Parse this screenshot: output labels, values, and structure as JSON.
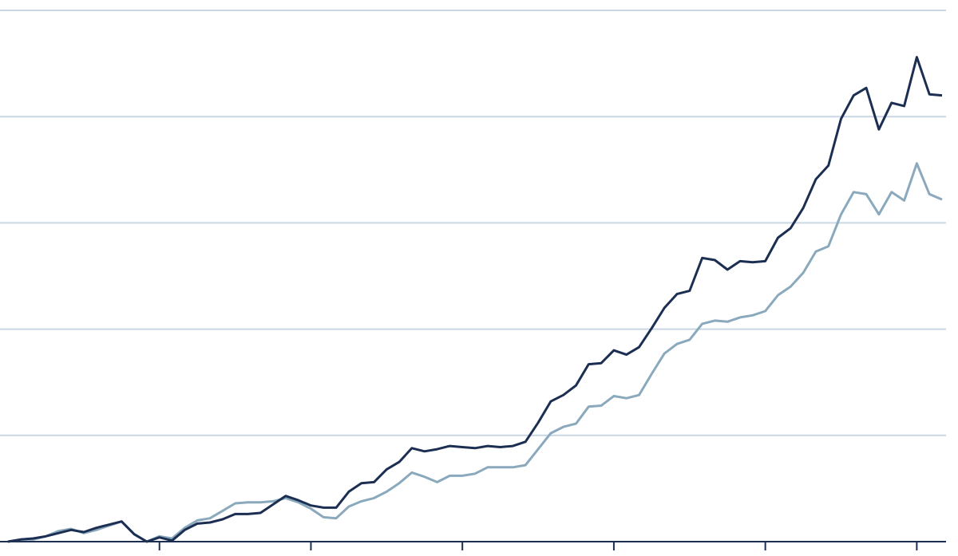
{
  "chart_data": {
    "type": "line",
    "x": [
      0,
      1,
      2,
      3,
      4,
      5,
      6,
      7,
      8,
      9,
      10,
      11,
      12,
      13,
      14,
      15,
      16,
      17,
      18,
      19,
      20,
      21,
      22,
      23,
      24,
      25,
      26,
      27,
      28,
      29,
      30,
      31,
      32,
      33,
      34,
      35,
      36,
      37,
      38,
      39,
      40,
      41,
      42,
      43,
      44,
      45,
      46,
      47,
      48,
      49,
      50,
      51,
      52,
      53,
      54,
      55,
      56,
      57,
      58,
      59,
      60,
      61,
      62,
      63,
      64,
      65,
      66,
      67,
      68,
      69,
      70,
      71,
      72,
      73,
      74
    ],
    "series": [
      {
        "color": "#1c2f52",
        "values": [
          0,
          0.02,
          0.03,
          0.05,
          0.08,
          0.11,
          0.09,
          0.13,
          0.16,
          0.19,
          0.07,
          0,
          0.04,
          0.01,
          0.11,
          0.17,
          0.18,
          0.21,
          0.26,
          0.26,
          0.27,
          0.35,
          0.43,
          0.39,
          0.34,
          0.32,
          0.32,
          0.47,
          0.55,
          0.56,
          0.68,
          0.75,
          0.88,
          0.85,
          0.87,
          0.9,
          0.89,
          0.88,
          0.9,
          0.89,
          0.9,
          0.94,
          1.12,
          1.32,
          1.38,
          1.47,
          1.67,
          1.68,
          1.8,
          1.76,
          1.83,
          2.01,
          2.2,
          2.33,
          2.36,
          2.67,
          2.65,
          2.56,
          2.64,
          2.63,
          2.64,
          2.86,
          2.95,
          3.14,
          3.41,
          3.54,
          3.98,
          4.2,
          4.27,
          3.88,
          4.13,
          4.1,
          4.56,
          4.21,
          4.2
        ]
      },
      {
        "color": "#8ba9bd",
        "values": [
          0,
          0.02,
          0.02,
          0.05,
          0.1,
          0.12,
          0.08,
          0.11,
          0.15,
          0.19,
          0.07,
          0,
          0.05,
          0.03,
          0.13,
          0.2,
          0.22,
          0.29,
          0.36,
          0.37,
          0.37,
          0.38,
          0.41,
          0.37,
          0.31,
          0.23,
          0.22,
          0.33,
          0.38,
          0.41,
          0.47,
          0.55,
          0.65,
          0.61,
          0.56,
          0.62,
          0.62,
          0.64,
          0.7,
          0.7,
          0.7,
          0.72,
          0.87,
          1.02,
          1.08,
          1.11,
          1.27,
          1.28,
          1.37,
          1.35,
          1.38,
          1.58,
          1.77,
          1.86,
          1.9,
          2.05,
          2.08,
          2.07,
          2.11,
          2.13,
          2.17,
          2.32,
          2.4,
          2.53,
          2.73,
          2.78,
          3.08,
          3.29,
          3.27,
          3.08,
          3.29,
          3.21,
          3.56,
          3.27,
          3.22
        ]
      }
    ],
    "xlim": [
      0,
      74
    ],
    "xticks": [
      12,
      24,
      36,
      48,
      60,
      72
    ],
    "ylim": [
      0,
      5
    ],
    "yticks": [
      0,
      1,
      2,
      3,
      4,
      5
    ],
    "grid": true
  }
}
